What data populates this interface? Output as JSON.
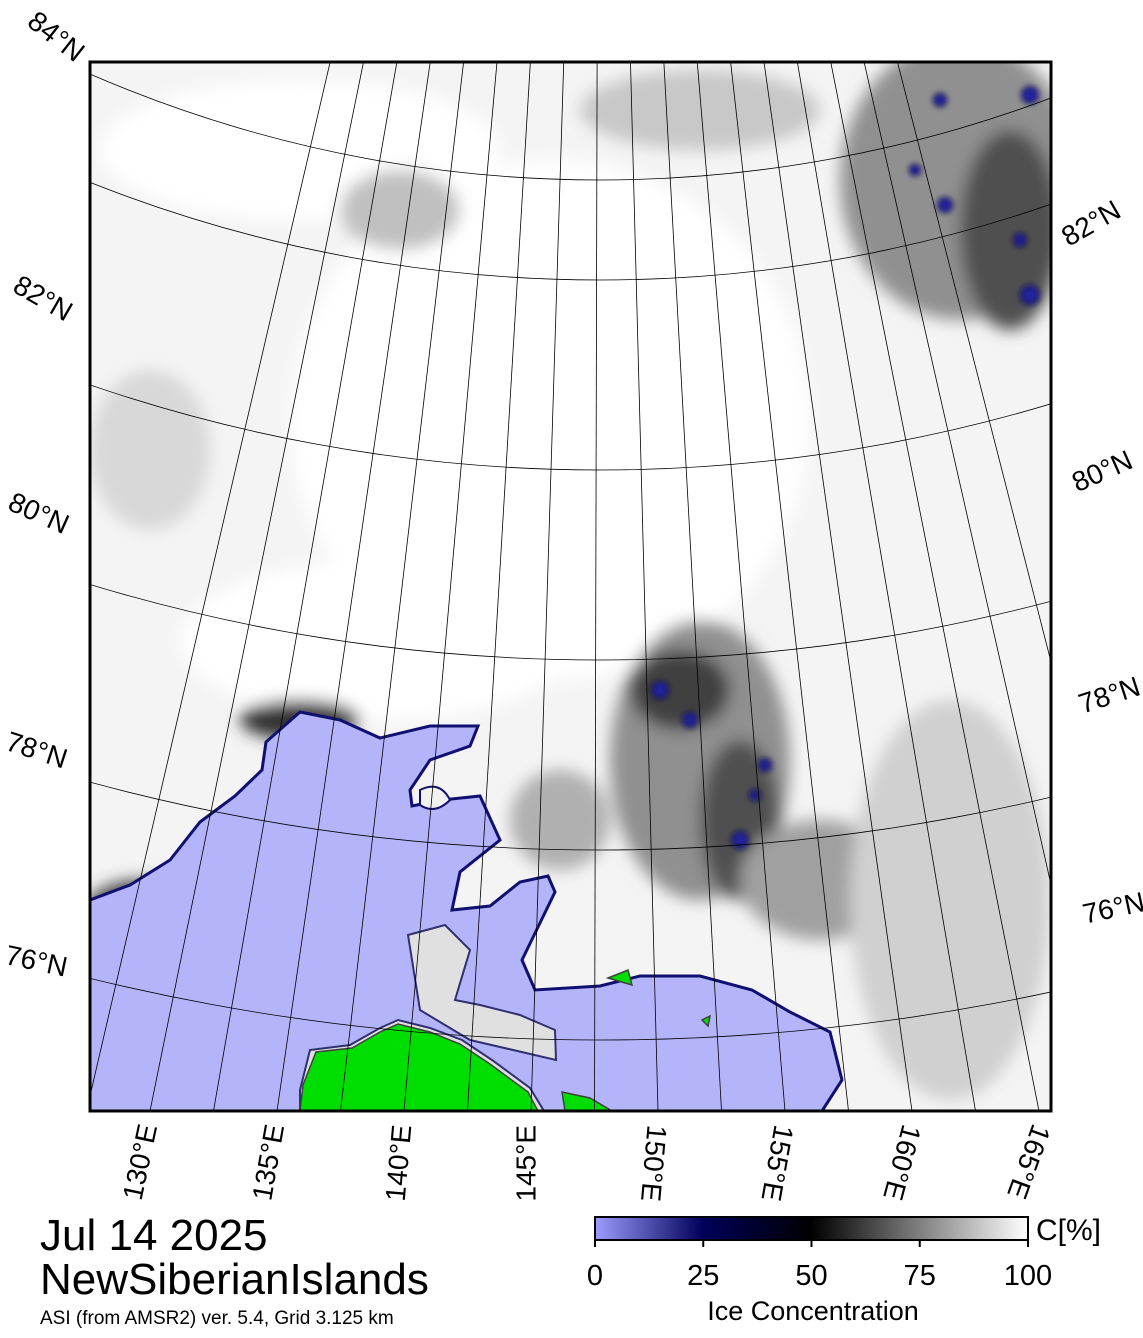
{
  "map": {
    "lat_labels_left": [
      "84°N",
      "82°N",
      "80°N",
      "78°N",
      "76°N"
    ],
    "lat_labels_right": [
      "82°N",
      "80°N",
      "78°N",
      "76°N"
    ],
    "lon_labels": [
      "130°E",
      "135°E",
      "140°E",
      "145°E",
      "150°E",
      "155°E",
      "160°E",
      "165°E"
    ]
  },
  "date": "Jul 14 2025",
  "region": "NewSiberianIslands",
  "source": "ASI (from AMSR2) ver. 5.4,  Grid 3.125 km",
  "colorbar": {
    "label": "Ice Concentration",
    "unit": "C[%]",
    "range": [
      0,
      100
    ],
    "ticks": [
      0,
      25,
      50,
      75,
      100
    ]
  }
}
